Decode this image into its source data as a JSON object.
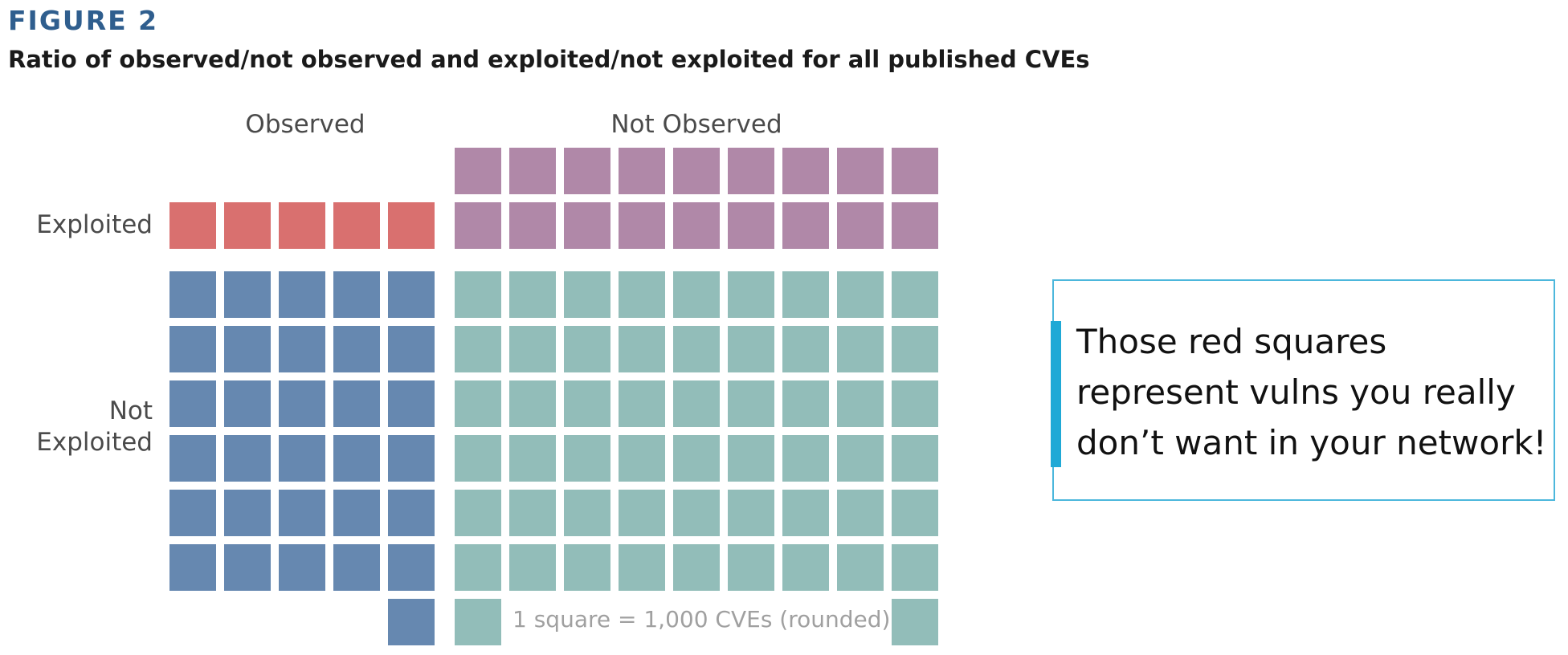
{
  "figure_label": "FIGURE 2",
  "chart_data": {
    "type": "waffle",
    "title": "Ratio of observed/not observed and exploited/not exploited for all published CVEs",
    "column_labels": [
      "Observed",
      "Not Observed"
    ],
    "row_labels": [
      "Exploited",
      "Not\nExploited"
    ],
    "unit": 1000,
    "unit_label": "1 square = 1,000 CVEs (rounded)",
    "cells": [
      {
        "observed": "Observed",
        "exploited": "Exploited",
        "squares": 5,
        "color": "#d9706f"
      },
      {
        "observed": "Not Observed",
        "exploited": "Exploited",
        "squares": 18,
        "color": "#b088a8"
      },
      {
        "observed": "Observed",
        "exploited": "Not Exploited",
        "squares": 31,
        "color": "#6688b0"
      },
      {
        "observed": "Not Observed",
        "exploited": "Not Exploited",
        "squares": 55,
        "color": "#92bdb9"
      }
    ]
  },
  "callout": {
    "text": "Those red squares represent vulns you really don’t want in your network!"
  }
}
